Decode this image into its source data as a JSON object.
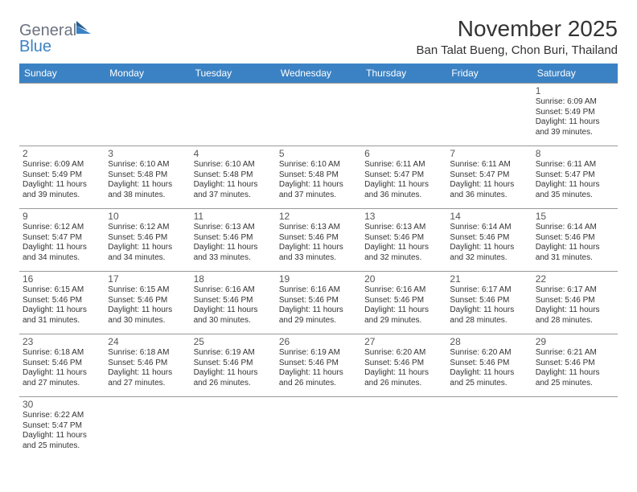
{
  "logo": {
    "text1": "General",
    "text2": "Blue"
  },
  "title": "November 2025",
  "location": "Ban Talat Bueng, Chon Buri, Thailand",
  "header_bg": "#3b82c4",
  "days": [
    "Sunday",
    "Monday",
    "Tuesday",
    "Wednesday",
    "Thursday",
    "Friday",
    "Saturday"
  ],
  "first_day_index": 6,
  "cells": [
    {
      "n": 1,
      "sr": "6:09 AM",
      "ss": "5:49 PM",
      "dl": "11 hours and 39 minutes."
    },
    {
      "n": 2,
      "sr": "6:09 AM",
      "ss": "5:49 PM",
      "dl": "11 hours and 39 minutes."
    },
    {
      "n": 3,
      "sr": "6:10 AM",
      "ss": "5:48 PM",
      "dl": "11 hours and 38 minutes."
    },
    {
      "n": 4,
      "sr": "6:10 AM",
      "ss": "5:48 PM",
      "dl": "11 hours and 37 minutes."
    },
    {
      "n": 5,
      "sr": "6:10 AM",
      "ss": "5:48 PM",
      "dl": "11 hours and 37 minutes."
    },
    {
      "n": 6,
      "sr": "6:11 AM",
      "ss": "5:47 PM",
      "dl": "11 hours and 36 minutes."
    },
    {
      "n": 7,
      "sr": "6:11 AM",
      "ss": "5:47 PM",
      "dl": "11 hours and 36 minutes."
    },
    {
      "n": 8,
      "sr": "6:11 AM",
      "ss": "5:47 PM",
      "dl": "11 hours and 35 minutes."
    },
    {
      "n": 9,
      "sr": "6:12 AM",
      "ss": "5:47 PM",
      "dl": "11 hours and 34 minutes."
    },
    {
      "n": 10,
      "sr": "6:12 AM",
      "ss": "5:46 PM",
      "dl": "11 hours and 34 minutes."
    },
    {
      "n": 11,
      "sr": "6:13 AM",
      "ss": "5:46 PM",
      "dl": "11 hours and 33 minutes."
    },
    {
      "n": 12,
      "sr": "6:13 AM",
      "ss": "5:46 PM",
      "dl": "11 hours and 33 minutes."
    },
    {
      "n": 13,
      "sr": "6:13 AM",
      "ss": "5:46 PM",
      "dl": "11 hours and 32 minutes."
    },
    {
      "n": 14,
      "sr": "6:14 AM",
      "ss": "5:46 PM",
      "dl": "11 hours and 32 minutes."
    },
    {
      "n": 15,
      "sr": "6:14 AM",
      "ss": "5:46 PM",
      "dl": "11 hours and 31 minutes."
    },
    {
      "n": 16,
      "sr": "6:15 AM",
      "ss": "5:46 PM",
      "dl": "11 hours and 31 minutes."
    },
    {
      "n": 17,
      "sr": "6:15 AM",
      "ss": "5:46 PM",
      "dl": "11 hours and 30 minutes."
    },
    {
      "n": 18,
      "sr": "6:16 AM",
      "ss": "5:46 PM",
      "dl": "11 hours and 30 minutes."
    },
    {
      "n": 19,
      "sr": "6:16 AM",
      "ss": "5:46 PM",
      "dl": "11 hours and 29 minutes."
    },
    {
      "n": 20,
      "sr": "6:16 AM",
      "ss": "5:46 PM",
      "dl": "11 hours and 29 minutes."
    },
    {
      "n": 21,
      "sr": "6:17 AM",
      "ss": "5:46 PM",
      "dl": "11 hours and 28 minutes."
    },
    {
      "n": 22,
      "sr": "6:17 AM",
      "ss": "5:46 PM",
      "dl": "11 hours and 28 minutes."
    },
    {
      "n": 23,
      "sr": "6:18 AM",
      "ss": "5:46 PM",
      "dl": "11 hours and 27 minutes."
    },
    {
      "n": 24,
      "sr": "6:18 AM",
      "ss": "5:46 PM",
      "dl": "11 hours and 27 minutes."
    },
    {
      "n": 25,
      "sr": "6:19 AM",
      "ss": "5:46 PM",
      "dl": "11 hours and 26 minutes."
    },
    {
      "n": 26,
      "sr": "6:19 AM",
      "ss": "5:46 PM",
      "dl": "11 hours and 26 minutes."
    },
    {
      "n": 27,
      "sr": "6:20 AM",
      "ss": "5:46 PM",
      "dl": "11 hours and 26 minutes."
    },
    {
      "n": 28,
      "sr": "6:20 AM",
      "ss": "5:46 PM",
      "dl": "11 hours and 25 minutes."
    },
    {
      "n": 29,
      "sr": "6:21 AM",
      "ss": "5:46 PM",
      "dl": "11 hours and 25 minutes."
    },
    {
      "n": 30,
      "sr": "6:22 AM",
      "ss": "5:47 PM",
      "dl": "11 hours and 25 minutes."
    }
  ],
  "labels": {
    "sunrise": "Sunrise:",
    "sunset": "Sunset:",
    "daylight": "Daylight:"
  }
}
